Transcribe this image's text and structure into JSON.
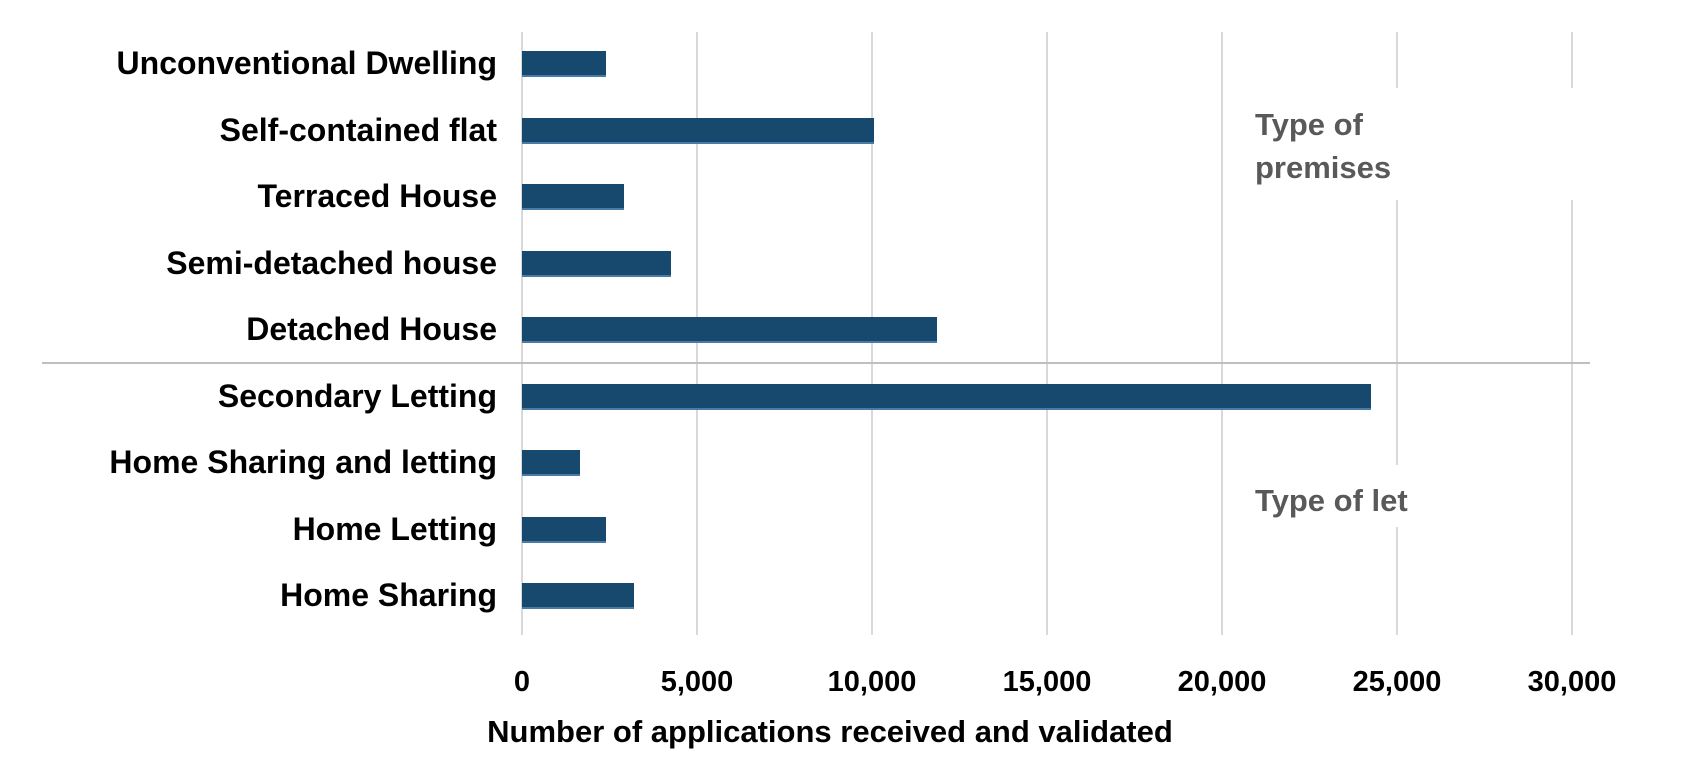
{
  "chart_data": {
    "type": "bar",
    "orientation": "horizontal",
    "xlabel": "Number of applications received and validated",
    "xlim": [
      0,
      30000
    ],
    "x_tick_values": [
      0,
      5000,
      10000,
      15000,
      20000,
      25000,
      30000
    ],
    "x_tick_labels": [
      "0",
      "5,000",
      "10,000",
      "15,000",
      "20,000",
      "25,000",
      "30,000"
    ],
    "gridlines": true,
    "bar_color": "#17486e",
    "group_divider": true,
    "groups": [
      {
        "name": "Type of premises",
        "categories": [
          "Unconventional Dwelling",
          "Self-contained flat",
          "Terraced House",
          "Semi-detached house",
          "Detached House"
        ],
        "values": [
          2400,
          10050,
          2900,
          4250,
          11850
        ]
      },
      {
        "name": "Type of let",
        "categories": [
          "Secondary Letting",
          "Home Sharing and letting",
          "Home Letting",
          "Home Sharing"
        ],
        "values": [
          24250,
          1650,
          2400,
          3200
        ]
      }
    ],
    "annotations": {
      "premises": {
        "line1": "Type of",
        "line2": "premises"
      },
      "let": {
        "text": "Type of let"
      }
    }
  }
}
